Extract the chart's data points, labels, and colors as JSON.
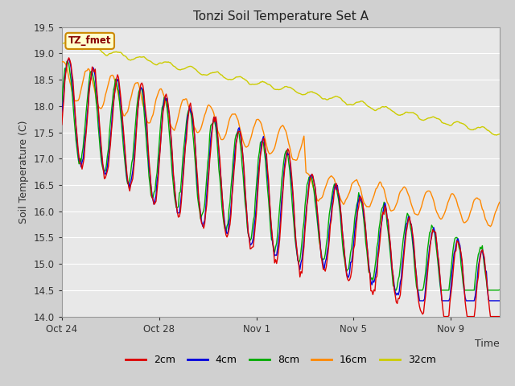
{
  "title": "Tonzi Soil Temperature Set A",
  "ylabel": "Soil Temperature (C)",
  "xlabel": "Time",
  "annotation": "TZ_fmet",
  "ylim": [
    14.0,
    19.5
  ],
  "legend": [
    "2cm",
    "4cm",
    "8cm",
    "16cm",
    "32cm"
  ],
  "colors": [
    "#dd0000",
    "#0000dd",
    "#00aa00",
    "#ff8800",
    "#cccc00"
  ],
  "fig_bg": "#d0d0d0",
  "plot_bg": "#e8e8e8",
  "grid_color": "#ffffff"
}
